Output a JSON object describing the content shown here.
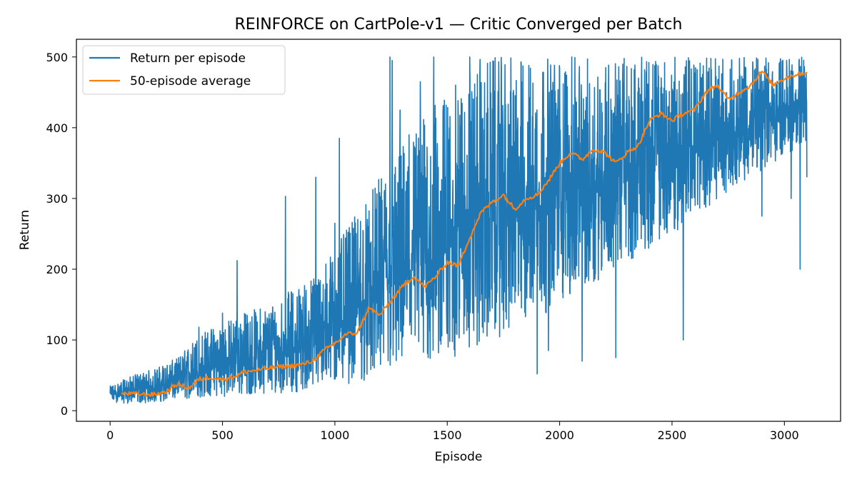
{
  "chart_data": {
    "type": "line",
    "title": "REINFORCE on CartPole-v1 — Critic Converged per Batch",
    "xlabel": "Episode",
    "ylabel": "Return",
    "xlim": [
      -150,
      3250
    ],
    "ylim": [
      -15,
      525
    ],
    "x_ticks": [
      0,
      500,
      1000,
      1500,
      2000,
      2500,
      3000
    ],
    "y_ticks": [
      0,
      100,
      200,
      300,
      400,
      500
    ],
    "grid": false,
    "legend_position": "top-left",
    "n_episodes": 3100,
    "series": [
      {
        "name": "Return per episode",
        "color": "#1f77b4",
        "envelope": {
          "x": [
            0,
            100,
            200,
            300,
            400,
            500,
            600,
            700,
            800,
            900,
            1000,
            1100,
            1200,
            1300,
            1400,
            1500,
            1600,
            1650,
            1700,
            1800,
            1900,
            2000,
            2100,
            2200,
            2300,
            2400,
            2500,
            2600,
            2700,
            2800,
            2900,
            3000,
            3100
          ],
          "low": [
            12,
            10,
            12,
            15,
            18,
            20,
            22,
            25,
            25,
            30,
            35,
            40,
            45,
            55,
            60,
            70,
            80,
            90,
            100,
            110,
            130,
            150,
            170,
            190,
            210,
            230,
            250,
            270,
            300,
            320,
            340,
            360,
            380
          ],
          "high": [
            35,
            50,
            60,
            75,
            110,
            125,
            140,
            150,
            170,
            190,
            230,
            280,
            330,
            380,
            420,
            450,
            480,
            500,
            500,
            500,
            500,
            500,
            500,
            500,
            500,
            500,
            500,
            500,
            500,
            500,
            500,
            500,
            500
          ]
        },
        "spikes": [
          [
            395,
            118
          ],
          [
            500,
            138
          ],
          [
            565,
            212
          ],
          [
            780,
            303
          ],
          [
            915,
            330
          ],
          [
            1000,
            265
          ],
          [
            1020,
            385
          ],
          [
            1245,
            500
          ],
          [
            1255,
            495
          ],
          [
            1290,
            425
          ],
          [
            1330,
            390
          ],
          [
            1380,
            465
          ],
          [
            1440,
            500
          ],
          [
            1540,
            350
          ],
          [
            1600,
            500
          ],
          [
            1900,
            52
          ],
          [
            1950,
            85
          ],
          [
            2100,
            70
          ],
          [
            2250,
            75
          ],
          [
            2550,
            100
          ],
          [
            2900,
            275
          ],
          [
            3030,
            300
          ],
          [
            3070,
            200
          ],
          [
            3100,
            330
          ]
        ]
      },
      {
        "name": "50-episode average",
        "color": "#ff7f0e",
        "x": [
          50,
          100,
          150,
          200,
          250,
          300,
          350,
          400,
          450,
          500,
          550,
          600,
          650,
          700,
          750,
          800,
          850,
          900,
          950,
          1000,
          1050,
          1100,
          1150,
          1200,
          1250,
          1300,
          1350,
          1400,
          1450,
          1500,
          1550,
          1600,
          1650,
          1700,
          1750,
          1800,
          1850,
          1900,
          1950,
          2000,
          2050,
          2100,
          2150,
          2200,
          2250,
          2300,
          2350,
          2400,
          2450,
          2500,
          2550,
          2600,
          2650,
          2700,
          2750,
          2800,
          2850,
          2900,
          2950,
          3000,
          3050,
          3100
        ],
        "values": [
          24,
          24,
          23,
          23,
          27,
          38,
          32,
          45,
          47,
          44,
          48,
          55,
          57,
          60,
          62,
          63,
          65,
          70,
          85,
          95,
          108,
          110,
          145,
          135,
          155,
          175,
          190,
          175,
          190,
          210,
          205,
          245,
          280,
          295,
          305,
          285,
          300,
          305,
          325,
          350,
          365,
          355,
          370,
          365,
          350,
          365,
          375,
          410,
          420,
          410,
          420,
          425,
          450,
          460,
          440,
          450,
          460,
          480,
          460,
          470,
          475,
          478
        ]
      }
    ]
  }
}
